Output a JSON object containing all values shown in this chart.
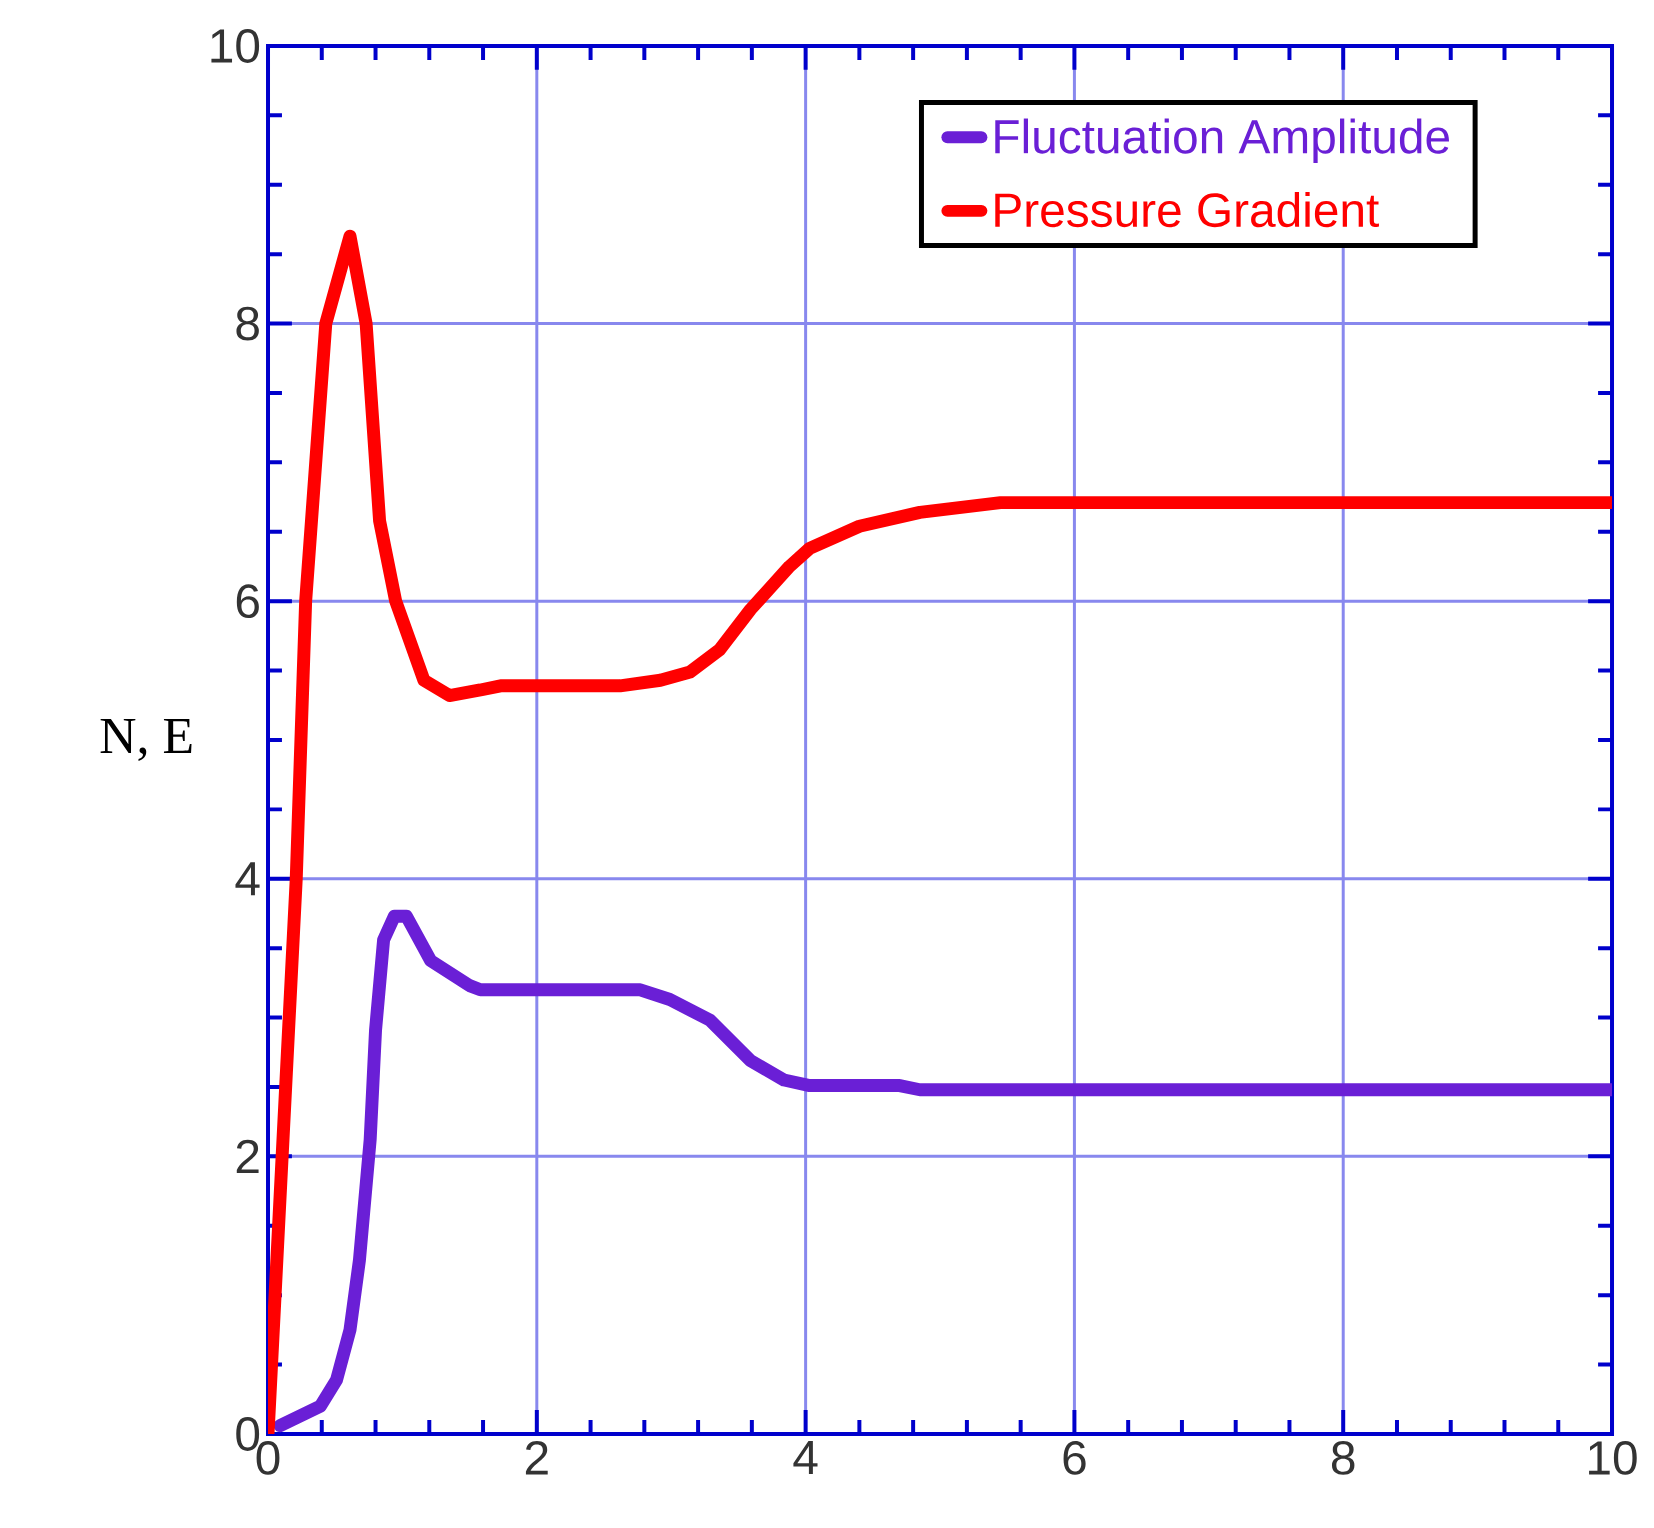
{
  "chart_data": {
    "type": "line",
    "ylabel": "N, E",
    "xlim": [
      0,
      10
    ],
    "ylim": [
      0,
      10
    ],
    "xticks": [
      0,
      2,
      4,
      6,
      8,
      10
    ],
    "yticks": [
      0,
      2,
      4,
      6,
      8,
      10
    ],
    "grid": true,
    "legend": "top right",
    "line_style": "solid",
    "marker": "none",
    "series": [
      {
        "name": "Fluctuation Amplitude",
        "color": "#6a1fd6",
        "x": [
          0.09,
          0.39,
          0.51,
          0.61,
          0.68,
          0.76,
          0.8,
          0.86,
          0.94,
          1.03,
          1.21,
          1.5,
          1.58,
          2.77,
          2.99,
          3.29,
          3.59,
          3.84,
          4.03,
          4.7,
          4.85,
          10
        ],
        "values": [
          0.06,
          0.2,
          0.39,
          0.75,
          1.25,
          2.12,
          2.91,
          3.56,
          3.73,
          3.73,
          3.41,
          3.23,
          3.2,
          3.2,
          3.13,
          2.98,
          2.69,
          2.55,
          2.51,
          2.51,
          2.48,
          2.48
        ]
      },
      {
        "name": "Pressure Gradient",
        "color": "#ff0000",
        "x": [
          0,
          0.21,
          0.28,
          0.43,
          0.61,
          0.73,
          0.83,
          0.95,
          1.16,
          1.35,
          1.58,
          1.73,
          2.62,
          2.92,
          3.14,
          3.36,
          3.59,
          3.88,
          4.03,
          4.4,
          4.85,
          5.45,
          10
        ],
        "values": [
          0,
          4,
          6,
          8,
          8.63,
          8,
          6.58,
          6.0,
          5.43,
          5.32,
          5.36,
          5.39,
          5.39,
          5.43,
          5.49,
          5.65,
          5.94,
          6.25,
          6.38,
          6.54,
          6.64,
          6.71,
          6.71
        ]
      }
    ]
  }
}
